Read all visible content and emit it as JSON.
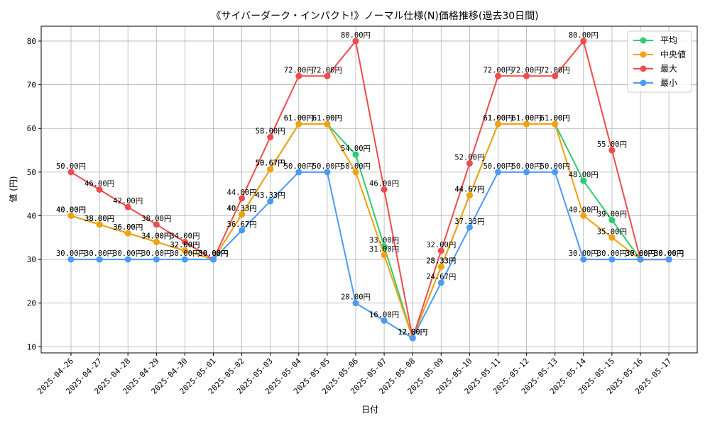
{
  "chart_data": {
    "type": "line",
    "title": "《サイバーダーク・インパクト!》ノーマル仕様(N)価格推移(過去30日間)",
    "xlabel": "日付",
    "ylabel": "値 (円)",
    "ylim": [
      8.6,
      83.4
    ],
    "yticks": [
      10,
      20,
      30,
      40,
      50,
      60,
      70,
      80
    ],
    "grid": true,
    "legend_position": "top-right",
    "value_suffix": "円",
    "categories": [
      "2025-04-26",
      "2025-04-27",
      "2025-04-28",
      "2025-04-29",
      "2025-04-30",
      "2025-05-01",
      "2025-05-02",
      "2025-05-03",
      "2025-05-04",
      "2025-05-05",
      "2025-05-06",
      "2025-05-07",
      "2025-05-08",
      "2025-05-09",
      "2025-05-10",
      "2025-05-11",
      "2025-05-12",
      "2025-05-13",
      "2025-05-14",
      "2025-05-15",
      "2025-05-16",
      "2025-05-17"
    ],
    "series": [
      {
        "name": "平均",
        "color": "#2ecc71",
        "values": [
          40,
          38,
          36,
          34,
          32,
          30,
          40.33,
          50.67,
          61,
          61,
          54,
          33,
          12,
          28.33,
          44.67,
          61,
          61,
          61,
          48,
          39,
          30,
          30
        ]
      },
      {
        "name": "中央値",
        "color": "#f5a00f",
        "values": [
          40,
          38,
          36,
          34,
          32,
          30,
          40.33,
          50.67,
          61,
          61,
          50,
          31,
          12,
          28.33,
          44.67,
          61,
          61,
          61,
          40,
          35,
          30,
          30
        ]
      },
      {
        "name": "最大",
        "color": "#ef4b4b",
        "values": [
          50,
          46,
          42,
          38,
          34,
          30,
          44,
          58,
          72,
          72,
          80,
          46,
          12,
          32,
          52,
          72,
          72,
          72,
          80,
          55,
          30,
          30
        ]
      },
      {
        "name": "最小",
        "color": "#4b9af5",
        "values": [
          30,
          30,
          30,
          30,
          30,
          30,
          36.67,
          43.33,
          50,
          50,
          20,
          16,
          12,
          24.67,
          37.33,
          50,
          50,
          50,
          30,
          30,
          30,
          30
        ]
      }
    ]
  }
}
